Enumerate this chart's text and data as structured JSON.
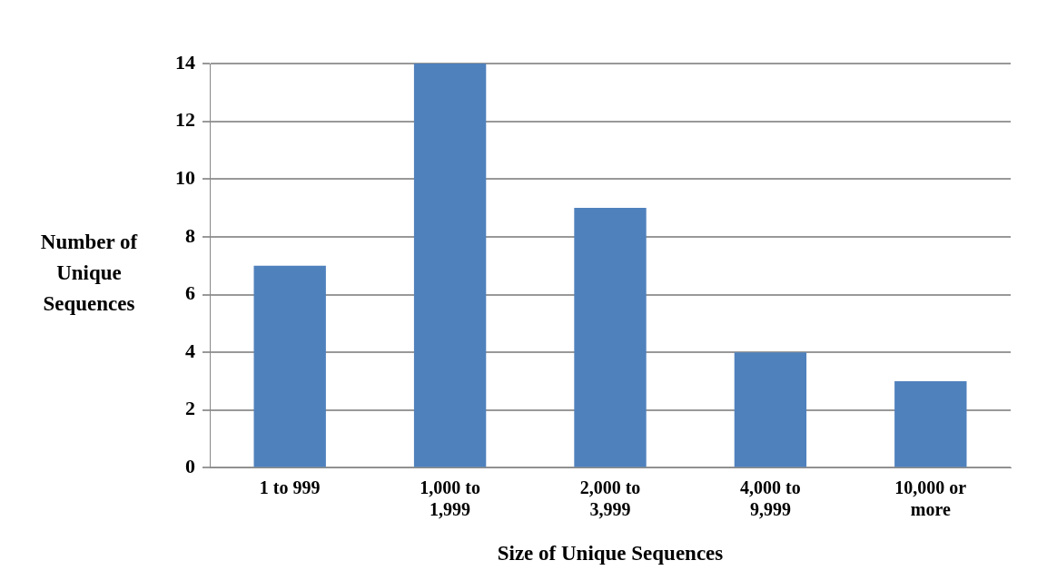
{
  "chart_data": {
    "type": "bar",
    "xlabel": "Size of Unique Sequences",
    "ylabel": "Number of Unique Sequences",
    "categories": [
      "1 to 999",
      "1,000 to 1,999",
      "2,000 to 3,999",
      "4,000 to 9,999",
      "10,000 or more"
    ],
    "values": [
      7,
      14,
      9,
      4,
      3
    ],
    "color": "#4f81bd",
    "ylim": [
      0,
      14
    ],
    "yticks": [
      0,
      2,
      4,
      6,
      8,
      10,
      12,
      14
    ],
    "grid": "y",
    "legend": false
  }
}
